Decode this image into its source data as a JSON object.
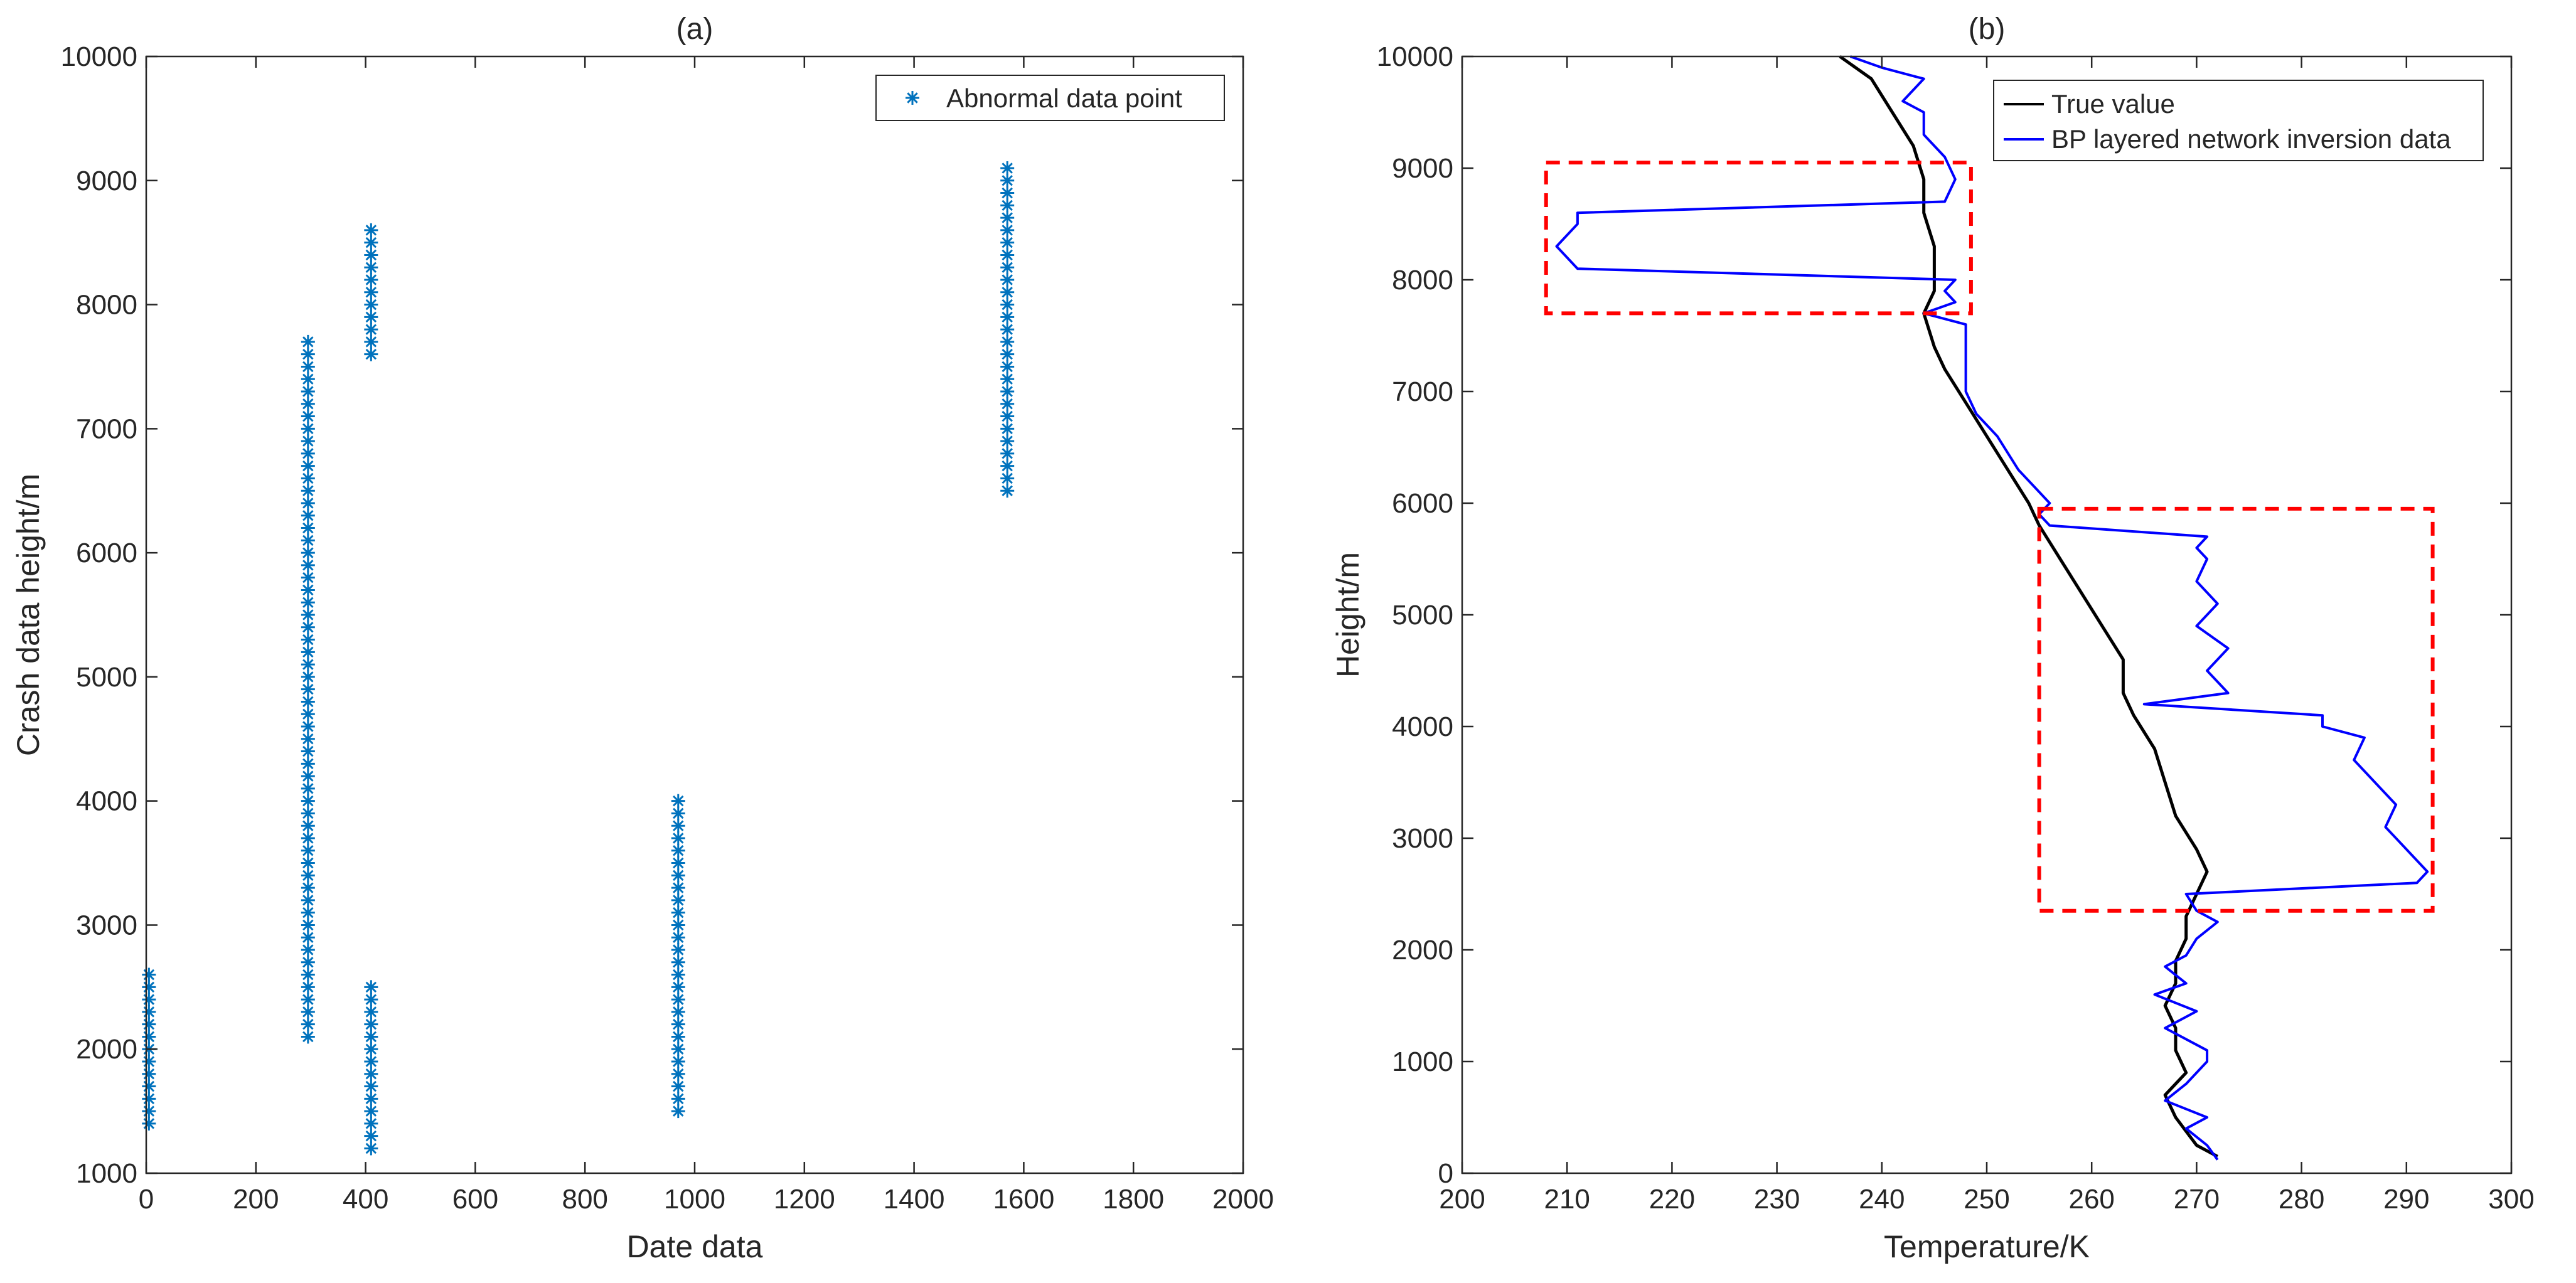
{
  "colors": {
    "axis": "#262626",
    "marker": "#0072BD",
    "true_line": "#000000",
    "bp_line": "#0000FF",
    "box": "#FF0000"
  },
  "chart_data": [
    {
      "id": "a",
      "type": "scatter",
      "title": "(a)",
      "xlabel": "Date data",
      "ylabel": "Crash data height/m",
      "xlim": [
        0,
        2000
      ],
      "ylim": [
        1000,
        10000
      ],
      "xticks": [
        0,
        200,
        400,
        600,
        800,
        1000,
        1200,
        1400,
        1600,
        1800,
        2000
      ],
      "yticks": [
        1000,
        2000,
        3000,
        4000,
        5000,
        6000,
        7000,
        8000,
        9000,
        10000
      ],
      "grid": false,
      "legend": {
        "placement": "top-right",
        "entries": [
          "Abnormal data point"
        ]
      },
      "marker": "*",
      "groups": [
        {
          "x": 5,
          "y_from": 1400,
          "y_to": 2600,
          "step": 100
        },
        {
          "x": 295,
          "y_from": 2100,
          "y_to": 7700,
          "step": 100
        },
        {
          "x": 410,
          "y_from": 7600,
          "y_to": 8600,
          "step": 100
        },
        {
          "x": 410,
          "y_from": 1200,
          "y_to": 2500,
          "step": 100
        },
        {
          "x": 970,
          "y_from": 1500,
          "y_to": 4000,
          "step": 100
        },
        {
          "x": 1570,
          "y_from": 6500,
          "y_to": 9100,
          "step": 100
        }
      ]
    },
    {
      "id": "b",
      "type": "line",
      "title": "(b)",
      "xlabel": "Temperature/K",
      "ylabel": "Height/m",
      "xlim": [
        200,
        300
      ],
      "ylim": [
        0,
        10000
      ],
      "xticks": [
        200,
        210,
        220,
        230,
        240,
        250,
        260,
        270,
        280,
        290,
        300
      ],
      "yticks": [
        0,
        1000,
        2000,
        3000,
        4000,
        5000,
        6000,
        7000,
        8000,
        9000,
        10000
      ],
      "grid": false,
      "legend": {
        "placement": "top-right",
        "entries": [
          "True value",
          "BP layered network inversion data"
        ]
      },
      "series": [
        {
          "name": "True value",
          "points": [
            [
              272,
              150
            ],
            [
              270,
              250
            ],
            [
              268,
              500
            ],
            [
              267,
              700
            ],
            [
              269,
              900
            ],
            [
              268,
              1100
            ],
            [
              268,
              1300
            ],
            [
              267,
              1500
            ],
            [
              268,
              1700
            ],
            [
              268,
              1900
            ],
            [
              269,
              2100
            ],
            [
              269,
              2300
            ],
            [
              270,
              2500
            ],
            [
              271,
              2700
            ],
            [
              270,
              2900
            ],
            [
              268,
              3200
            ],
            [
              267,
              3500
            ],
            [
              266,
              3800
            ],
            [
              264,
              4100
            ],
            [
              263,
              4300
            ],
            [
              263,
              4600
            ],
            [
              261,
              4900
            ],
            [
              259,
              5200
            ],
            [
              257,
              5500
            ],
            [
              255,
              5800
            ],
            [
              254,
              6000
            ],
            [
              252,
              6300
            ],
            [
              250,
              6600
            ],
            [
              248,
              6900
            ],
            [
              246,
              7200
            ],
            [
              245,
              7400
            ],
            [
              244,
              7700
            ],
            [
              245,
              7900
            ],
            [
              245,
              8100
            ],
            [
              245,
              8300
            ],
            [
              244,
              8600
            ],
            [
              244,
              8900
            ],
            [
              243,
              9200
            ],
            [
              241,
              9500
            ],
            [
              239,
              9800
            ],
            [
              236,
              10000
            ]
          ]
        },
        {
          "name": "BP layered network inversion data",
          "points": [
            [
              272,
              120
            ],
            [
              271,
              250
            ],
            [
              269,
              400
            ],
            [
              271,
              500
            ],
            [
              267,
              650
            ],
            [
              269,
              800
            ],
            [
              271,
              1000
            ],
            [
              271,
              1100
            ],
            [
              267,
              1300
            ],
            [
              270,
              1450
            ],
            [
              266,
              1600
            ],
            [
              269,
              1700
            ],
            [
              267,
              1850
            ],
            [
              269,
              1950
            ],
            [
              270,
              2100
            ],
            [
              272,
              2250
            ],
            [
              270,
              2350
            ],
            [
              269,
              2500
            ],
            [
              291,
              2600
            ],
            [
              292,
              2700
            ],
            [
              290,
              2900
            ],
            [
              288,
              3100
            ],
            [
              289,
              3300
            ],
            [
              287,
              3500
            ],
            [
              285,
              3700
            ],
            [
              286,
              3900
            ],
            [
              282,
              4000
            ],
            [
              282,
              4100
            ],
            [
              265,
              4200
            ],
            [
              273,
              4300
            ],
            [
              271,
              4500
            ],
            [
              273,
              4700
            ],
            [
              270,
              4900
            ],
            [
              272,
              5100
            ],
            [
              270,
              5300
            ],
            [
              271,
              5500
            ],
            [
              270,
              5600
            ],
            [
              271,
              5700
            ],
            [
              256,
              5800
            ],
            [
              255,
              5900
            ],
            [
              256,
              6000
            ],
            [
              253,
              6300
            ],
            [
              251,
              6600
            ],
            [
              249,
              6800
            ],
            [
              248,
              7000
            ],
            [
              248,
              7200
            ],
            [
              248,
              7400
            ],
            [
              248,
              7600
            ],
            [
              244,
              7700
            ],
            [
              247,
              7800
            ],
            [
              246,
              7900
            ],
            [
              247,
              8000
            ],
            [
              211,
              8100
            ],
            [
              209,
              8300
            ],
            [
              211,
              8500
            ],
            [
              211,
              8600
            ],
            [
              246,
              8700
            ],
            [
              247,
              8900
            ],
            [
              246,
              9100
            ],
            [
              244,
              9300
            ],
            [
              244,
              9500
            ],
            [
              242,
              9600
            ],
            [
              244,
              9800
            ],
            [
              240,
              9900
            ],
            [
              237,
              10000
            ]
          ]
        }
      ],
      "highlight_boxes": [
        {
          "x": [
            208,
            248.5
          ],
          "y": [
            7700,
            9050
          ]
        },
        {
          "x": [
            255,
            292.5
          ],
          "y": [
            2350,
            5950
          ]
        }
      ]
    }
  ]
}
